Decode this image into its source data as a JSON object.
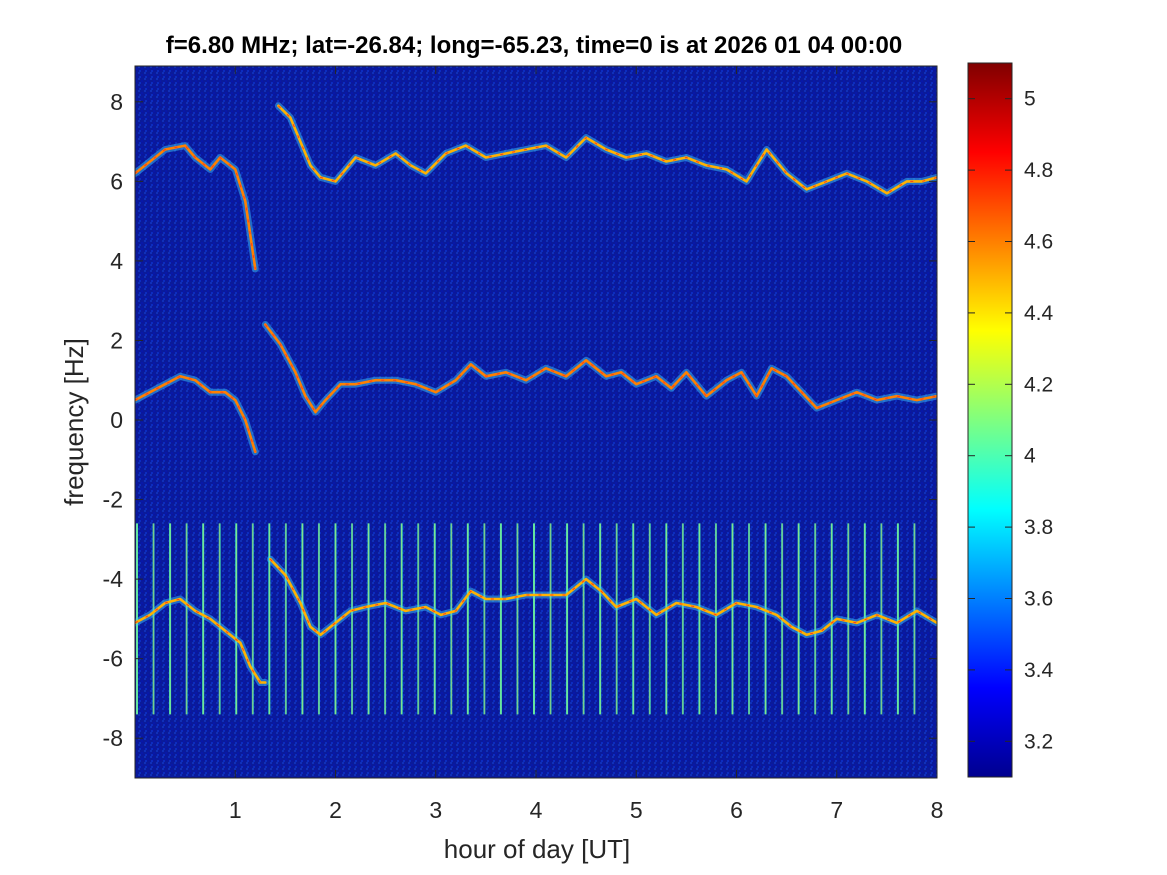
{
  "chart_data": {
    "type": "heatmap",
    "title": "f=6.80 MHz;  lat=-26.84; long=-65.23, time=0 is at 2026 01 04 00:00",
    "xlabel": "hour of day [UT]",
    "ylabel": "frequency [Hz]",
    "xlim": [
      0.0,
      8.0
    ],
    "ylim": [
      -9.0,
      8.9
    ],
    "x_ticks": [
      1,
      2,
      3,
      4,
      5,
      6,
      7,
      8
    ],
    "x_tick_labels": [
      "1",
      "2",
      "3",
      "4",
      "5",
      "6",
      "7",
      "8"
    ],
    "y_ticks": [
      8,
      6,
      4,
      2,
      0,
      -2,
      -4,
      -6,
      -8
    ],
    "y_tick_labels": [
      "8",
      "6",
      "4",
      "2",
      "0",
      "-2",
      "-4",
      "-6",
      "-8"
    ],
    "colormap": "jet",
    "colorbar": {
      "range": [
        3.1,
        5.1
      ],
      "ticks": [
        5,
        4.8,
        4.6,
        4.4,
        4.2,
        4,
        3.8,
        3.6,
        3.4,
        3.2
      ],
      "tick_labels": [
        "5",
        "4.8",
        "4.6",
        "4.4",
        "4.2",
        "4",
        "3.8",
        "3.6",
        "3.4",
        "3.2"
      ]
    },
    "background_level": 3.15,
    "traces": [
      {
        "x": [
          0.0,
          0.15,
          0.3,
          0.5,
          0.6,
          0.75,
          0.85,
          1.0,
          1.1,
          1.2
        ],
        "y": [
          6.2,
          6.5,
          6.8,
          6.9,
          6.6,
          6.3,
          6.6,
          6.3,
          5.5,
          3.8
        ],
        "level": 4.6
      },
      {
        "x": [
          1.43,
          1.55,
          1.65,
          1.75,
          1.85,
          2.0,
          2.2,
          2.4,
          2.6,
          2.75,
          2.9,
          3.1,
          3.3,
          3.5,
          3.7,
          3.9,
          4.1,
          4.3,
          4.5,
          4.7,
          4.9,
          5.1,
          5.3,
          5.5,
          5.7,
          5.9,
          6.1,
          6.3,
          6.5,
          6.7,
          6.9,
          7.1,
          7.3,
          7.5,
          7.7,
          7.85,
          8.0
        ],
        "y": [
          7.9,
          7.6,
          7.0,
          6.4,
          6.1,
          6.0,
          6.6,
          6.4,
          6.7,
          6.4,
          6.2,
          6.7,
          6.9,
          6.6,
          6.7,
          6.8,
          6.9,
          6.6,
          7.1,
          6.8,
          6.6,
          6.7,
          6.5,
          6.6,
          6.4,
          6.3,
          6.0,
          6.8,
          6.2,
          5.8,
          6.0,
          6.2,
          6.0,
          5.7,
          6.0,
          6.0,
          6.1
        ],
        "level": 4.5
      },
      {
        "x": [
          0.0,
          0.15,
          0.3,
          0.45,
          0.6,
          0.75,
          0.9,
          1.0,
          1.1,
          1.2
        ],
        "y": [
          0.5,
          0.7,
          0.9,
          1.1,
          1.0,
          0.7,
          0.7,
          0.5,
          0.0,
          -0.8
        ],
        "level": 4.6
      },
      {
        "x": [
          1.3,
          1.45,
          1.6,
          1.7,
          1.8,
          1.9,
          2.05,
          2.2,
          2.4,
          2.6,
          2.8,
          3.0,
          3.2,
          3.35,
          3.5,
          3.7,
          3.9,
          4.1,
          4.3,
          4.5,
          4.7,
          4.85,
          5.0,
          5.2,
          5.35,
          5.5,
          5.7,
          5.9,
          6.05,
          6.2,
          6.35,
          6.5,
          6.65,
          6.8,
          7.0,
          7.2,
          7.4,
          7.6,
          7.8,
          8.0
        ],
        "y": [
          2.4,
          1.9,
          1.2,
          0.6,
          0.2,
          0.5,
          0.9,
          0.9,
          1.0,
          1.0,
          0.9,
          0.7,
          1.0,
          1.4,
          1.1,
          1.2,
          1.0,
          1.3,
          1.1,
          1.5,
          1.1,
          1.2,
          0.9,
          1.1,
          0.8,
          1.2,
          0.6,
          1.0,
          1.2,
          0.6,
          1.3,
          1.1,
          0.7,
          0.3,
          0.5,
          0.7,
          0.5,
          0.6,
          0.5,
          0.6
        ],
        "level": 4.6
      },
      {
        "x": [
          0.0,
          0.15,
          0.3,
          0.45,
          0.6,
          0.75,
          0.9,
          1.05,
          1.15,
          1.25,
          1.3
        ],
        "y": [
          -5.1,
          -4.9,
          -4.6,
          -4.5,
          -4.8,
          -5.0,
          -5.3,
          -5.6,
          -6.2,
          -6.6,
          -6.6
        ],
        "level": 4.5
      },
      {
        "x": [
          1.35,
          1.5,
          1.65,
          1.75,
          1.85,
          2.0,
          2.15,
          2.3,
          2.5,
          2.7,
          2.9,
          3.05,
          3.2,
          3.35,
          3.5,
          3.7,
          3.9,
          4.1,
          4.3,
          4.5,
          4.65,
          4.8,
          5.0,
          5.2,
          5.4,
          5.6,
          5.8,
          6.0,
          6.2,
          6.4,
          6.55,
          6.7,
          6.85,
          7.0,
          7.2,
          7.4,
          7.6,
          7.8,
          8.0
        ],
        "y": [
          -3.5,
          -3.9,
          -4.6,
          -5.2,
          -5.4,
          -5.1,
          -4.8,
          -4.7,
          -4.6,
          -4.8,
          -4.7,
          -4.9,
          -4.8,
          -4.3,
          -4.5,
          -4.5,
          -4.4,
          -4.4,
          -4.4,
          -4.0,
          -4.3,
          -4.7,
          -4.5,
          -4.9,
          -4.6,
          -4.7,
          -4.9,
          -4.6,
          -4.7,
          -4.9,
          -5.2,
          -5.4,
          -5.3,
          -5.0,
          -5.1,
          -4.9,
          -5.1,
          -4.8,
          -5.1
        ],
        "level": 4.5
      }
    ],
    "vertical_streaks": {
      "x_start": 0.02,
      "x_end": 7.9,
      "spacing": 0.165,
      "y_range": [
        -7.4,
        -2.6
      ],
      "level": 4.0
    }
  }
}
